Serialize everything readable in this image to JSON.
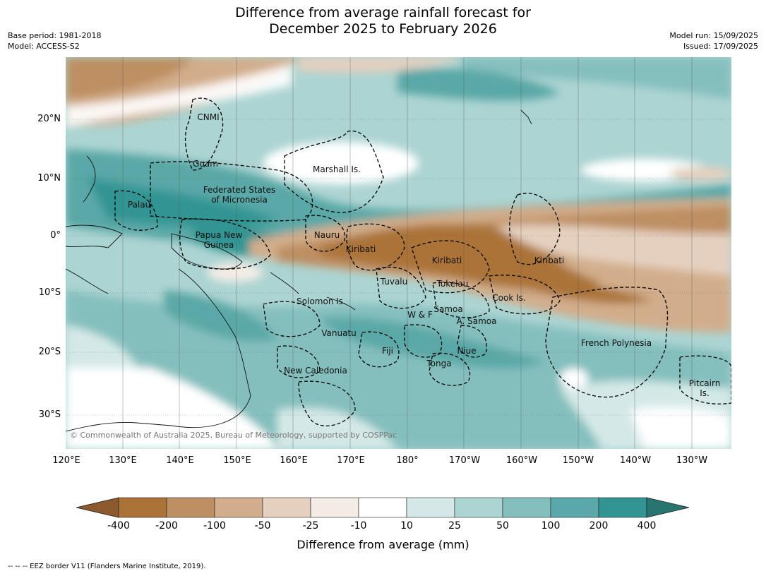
{
  "title_line1": "Difference from average rainfall forecast for",
  "title_line2": "December 2025 to February 2026",
  "meta_left": [
    "Base period: 1981-2018",
    "Model: ACCESS-S2"
  ],
  "meta_right": [
    "Model run: 15/09/2025",
    "Issued: 17/09/2025"
  ],
  "lat_labels": [
    "20°N",
    "10°N",
    "0°",
    "10°S",
    "20°S",
    "30°S"
  ],
  "lon_labels": [
    "120°E",
    "130°E",
    "140°E",
    "150°E",
    "160°E",
    "170°E",
    "180°",
    "170°W",
    "160°W",
    "150°W",
    "140°W",
    "130°W"
  ],
  "places": {
    "cnmi": "CNMI",
    "guam": "Guam",
    "marshall": "Marshall Is.",
    "fsm1": "Federated States",
    "fsm2": "of Micronesia",
    "palau": "Palau",
    "png1": "Papua New",
    "png2": "Guinea",
    "nauru": "Nauru",
    "kiribati_w": "Kiribati",
    "kiribati_c": "Kiribati",
    "kiribati_e": "Kiribati",
    "tuvalu": "Tuvalu",
    "tokelau": "Tokelau",
    "cook": "Cook Is.",
    "solomon": "Solomon Is.",
    "samoa": "Samoa",
    "wf": "W & F",
    "asamoa": "A. Samoa",
    "vanuatu": "Vanuatu",
    "fiji": "Fiji",
    "niue": "Niue",
    "tonga": "Tonga",
    "frenchpoly": "French Polynesia",
    "newcal": "New Caledonia",
    "pitcairn1": "Pitcairn",
    "pitcairn2": "Is."
  },
  "copyright": "© Commonwealth of Australia 2025, Bureau of Meteorology, supported by COSPPac",
  "colorbar": {
    "ticks": [
      "-400",
      "-200",
      "-100",
      "-50",
      "-25",
      "-10",
      "10",
      "25",
      "50",
      "100",
      "200",
      "400"
    ],
    "colors": [
      "#8c5a2c",
      "#ab7338",
      "#bd8f62",
      "#d2ad8b",
      "#e5d0bf",
      "#f3ece5",
      "#ffffff",
      "#d4e9e7",
      "#acd4d2",
      "#84bfbe",
      "#5aa8a7",
      "#339593",
      "#277471"
    ],
    "label": "Difference from average (mm)"
  },
  "footnote": "--  --  -- EEZ border V11 (Flanders Marine Institute, 2019)."
}
